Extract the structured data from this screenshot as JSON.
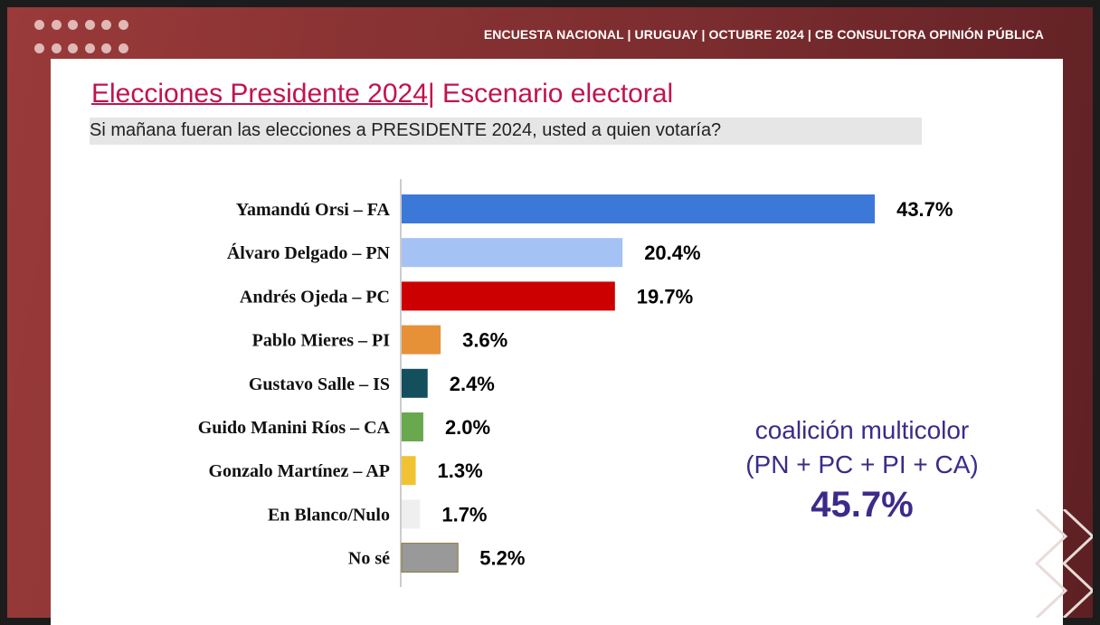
{
  "header": {
    "text": "ENCUESTA NACIONAL  |  URUGUAY | OCTUBRE  2024 | CB CONSULTORA OPINIÓN PÚBLICA"
  },
  "title": {
    "main": "Elecciones Presidente 2024",
    "sep": "|",
    "rest": " Escenario electoral"
  },
  "subtitle": "Si mañana fueran las elecciones a PRESIDENTE 2024, usted a quien votaría?",
  "chart_data": {
    "type": "bar",
    "orientation": "horizontal",
    "categories": [
      "Yamandú Orsi – FA",
      "Álvaro Delgado – PN",
      "Andrés Ojeda – PC",
      "Pablo Mieres – PI",
      "Gustavo Salle – IS",
      "Guido Manini Ríos – CA",
      "Gonzalo Martínez – AP",
      "En Blanco/Nulo",
      "No sé"
    ],
    "values": [
      43.7,
      20.4,
      19.7,
      3.6,
      2.4,
      2.0,
      1.3,
      1.7,
      5.2
    ],
    "value_labels": [
      "43.7%",
      "20.4%",
      "19.7%",
      "3.6%",
      "2.4%",
      "2.0%",
      "1.3%",
      "1.7%",
      "5.2%"
    ],
    "colors": [
      "#3c78d8",
      "#a4c2f4",
      "#cc0000",
      "#e69138",
      "#134f5c",
      "#6aa84f",
      "#f1c232",
      "#efefef",
      "#999999"
    ],
    "xlim": [
      0,
      45
    ],
    "grid": false
  },
  "coalition": {
    "line1": "coalición multicolor",
    "line2": "(PN + PC + PI + CA)",
    "value": "45.7%",
    "color": "#3d2a8a"
  }
}
